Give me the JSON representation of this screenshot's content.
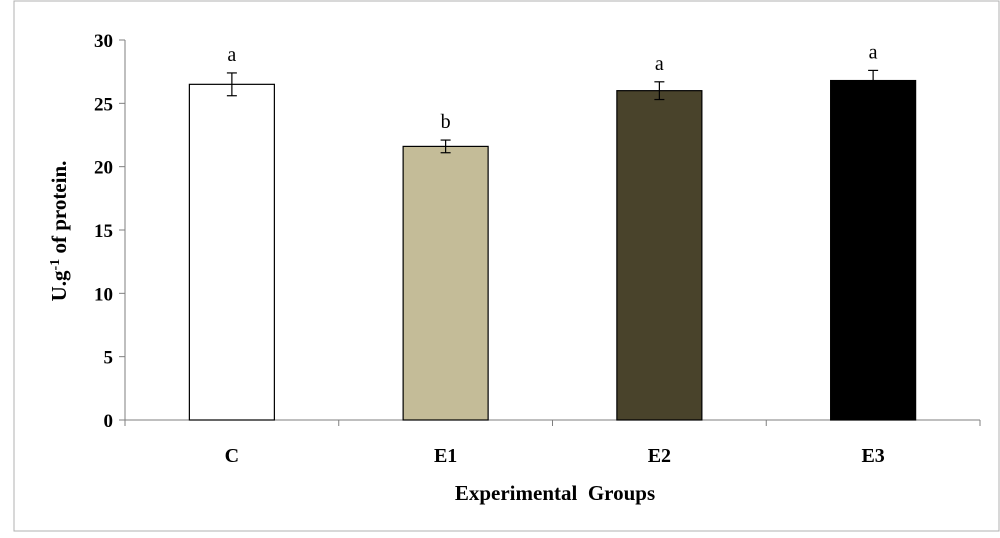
{
  "chart_data": {
    "type": "bar",
    "categories": [
      "C",
      "E1",
      "E2",
      "E3"
    ],
    "values": [
      26.5,
      21.6,
      26.0,
      26.8
    ],
    "errors": [
      0.9,
      0.5,
      0.7,
      0.8
    ],
    "significance": [
      "a",
      "b",
      "a",
      "a"
    ],
    "bar_colors": [
      "#ffffff",
      "#c4bc98",
      "#49432b",
      "#000000"
    ],
    "xlabel": "Experimental  Groups",
    "ylabel_parts": {
      "main": "U.g",
      "superscript": "-1",
      "rest": " of protein."
    },
    "ylim": [
      0,
      30
    ],
    "yticks": [
      0,
      5,
      10,
      15,
      20,
      25,
      30
    ],
    "grid": false,
    "legend": "none"
  }
}
